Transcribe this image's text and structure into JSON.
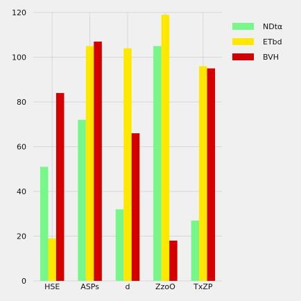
{
  "chart_data": {
    "type": "bar",
    "categories": [
      "HSE",
      "ASPs",
      "d",
      "ZzoO",
      "TxZP"
    ],
    "series": [
      {
        "name": "NDtα",
        "values": [
          51,
          72,
          32,
          105,
          27
        ],
        "color": "#77f68a"
      },
      {
        "name": "ETbd",
        "values": [
          19,
          105,
          104,
          119,
          96
        ],
        "color": "#ffe800"
      },
      {
        "name": "BVH",
        "values": [
          84,
          107,
          66,
          18,
          95
        ],
        "color": "#d40000"
      }
    ],
    "title": "",
    "xlabel": "",
    "ylabel": "",
    "ylim": [
      0,
      120
    ],
    "yticks": [
      0,
      20,
      40,
      60,
      80,
      100,
      120
    ],
    "grid": true,
    "legend_position": "top-right"
  }
}
